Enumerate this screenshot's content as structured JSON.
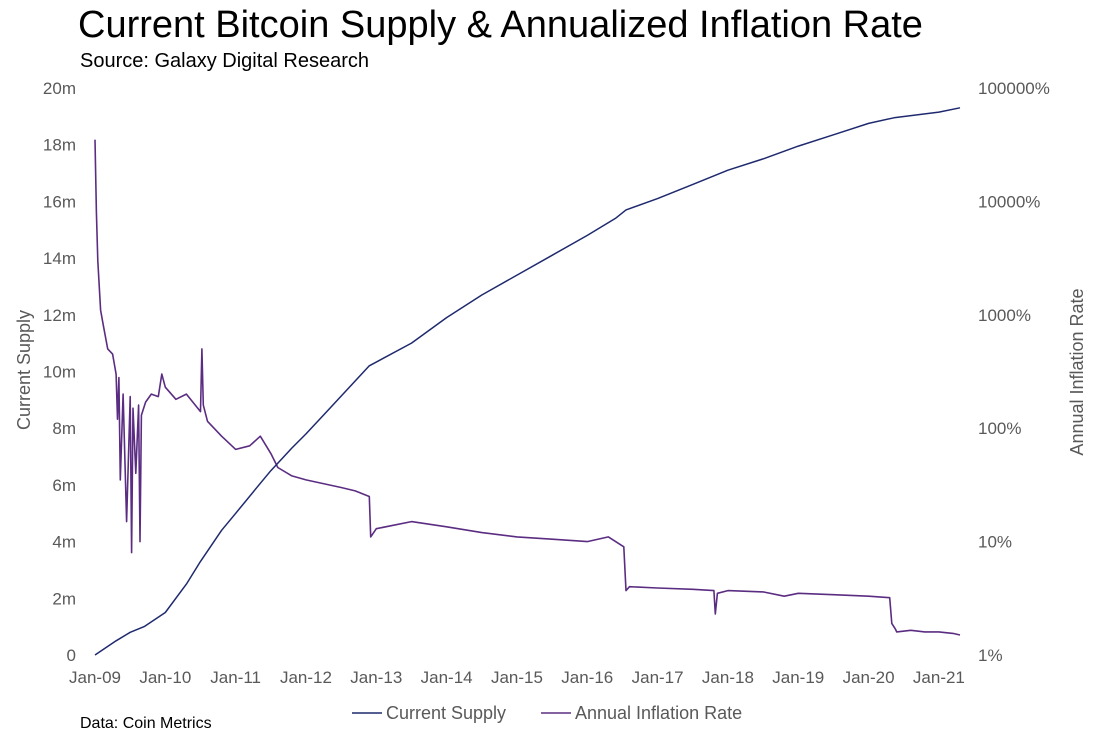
{
  "header": {
    "title": "Current Bitcoin Supply & Annualized Inflation Rate",
    "subtitle": "Source: Galaxy Digital Research"
  },
  "footer": {
    "note": "Data: Coin Metrics"
  },
  "chart_data": {
    "type": "line",
    "title": "Current Bitcoin Supply & Annualized Inflation Rate",
    "subtitle": "Source: Galaxy Digital Research",
    "xlabel": "",
    "ylabel": "Current Supply",
    "y2label": "Annual Inflation Rate",
    "x_range": [
      2009.0,
      2021.3
    ],
    "x_ticks": [
      {
        "label": "Jan-09",
        "x": 2009
      },
      {
        "label": "Jan-10",
        "x": 2010
      },
      {
        "label": "Jan-11",
        "x": 2011
      },
      {
        "label": "Jan-12",
        "x": 2012
      },
      {
        "label": "Jan-13",
        "x": 2013
      },
      {
        "label": "Jan-14",
        "x": 2014
      },
      {
        "label": "Jan-15",
        "x": 2015
      },
      {
        "label": "Jan-16",
        "x": 2016
      },
      {
        "label": "Jan-17",
        "x": 2017
      },
      {
        "label": "Jan-18",
        "x": 2018
      },
      {
        "label": "Jan-19",
        "x": 2019
      },
      {
        "label": "Jan-20",
        "x": 2020
      },
      {
        "label": "Jan-21",
        "x": 2021
      }
    ],
    "ylim": [
      0,
      20
    ],
    "y_ticks": [
      {
        "label": "0",
        "value": 0
      },
      {
        "label": "2m",
        "value": 2
      },
      {
        "label": "4m",
        "value": 4
      },
      {
        "label": "6m",
        "value": 6
      },
      {
        "label": "8m",
        "value": 8
      },
      {
        "label": "10m",
        "value": 10
      },
      {
        "label": "12m",
        "value": 12
      },
      {
        "label": "14m",
        "value": 14
      },
      {
        "label": "16m",
        "value": 16
      },
      {
        "label": "18m",
        "value": 18
      },
      {
        "label": "20m",
        "value": 20
      }
    ],
    "y2_scale": "log",
    "y2lim": [
      1,
      100000
    ],
    "y2_ticks": [
      {
        "label": "1%",
        "value": 1
      },
      {
        "label": "10%",
        "value": 10
      },
      {
        "label": "100%",
        "value": 100
      },
      {
        "label": "1000%",
        "value": 1000
      },
      {
        "label": "10000%",
        "value": 10000
      },
      {
        "label": "100000%",
        "value": 100000
      }
    ],
    "legend_position": "bottom-center",
    "grid": false,
    "series": [
      {
        "name": "Current Supply",
        "axis": "left",
        "color": "#1f2a6e",
        "units": "million BTC",
        "x": [
          2009.0,
          2009.3,
          2009.5,
          2009.7,
          2010.0,
          2010.3,
          2010.5,
          2010.8,
          2011.0,
          2011.3,
          2011.5,
          2011.8,
          2012.0,
          2012.3,
          2012.6,
          2012.9,
          2013.5,
          2014.0,
          2014.5,
          2015.0,
          2015.5,
          2016.0,
          2016.4,
          2016.55,
          2017.0,
          2017.5,
          2018.0,
          2018.5,
          2019.0,
          2019.5,
          2020.0,
          2020.36,
          2021.0,
          2021.3
        ],
        "values": [
          0.0,
          0.5,
          0.8,
          1.0,
          1.5,
          2.5,
          3.3,
          4.4,
          5.0,
          5.9,
          6.5,
          7.3,
          7.8,
          8.6,
          9.4,
          10.2,
          11.0,
          11.9,
          12.7,
          13.4,
          14.1,
          14.8,
          15.4,
          15.7,
          16.1,
          16.6,
          17.1,
          17.5,
          17.95,
          18.35,
          18.75,
          18.95,
          19.15,
          19.3
        ]
      },
      {
        "name": "Annual Inflation Rate",
        "axis": "right",
        "color": "#5b2d82",
        "units": "percent",
        "x": [
          2009.0,
          2009.02,
          2009.04,
          2009.08,
          2009.12,
          2009.18,
          2009.25,
          2009.3,
          2009.32,
          2009.34,
          2009.36,
          2009.4,
          2009.45,
          2009.5,
          2009.52,
          2009.54,
          2009.58,
          2009.62,
          2009.64,
          2009.66,
          2009.72,
          2009.8,
          2009.9,
          2009.95,
          2010.0,
          2010.15,
          2010.3,
          2010.5,
          2010.52,
          2010.54,
          2010.6,
          2010.8,
          2011.0,
          2011.2,
          2011.35,
          2011.5,
          2011.6,
          2011.8,
          2012.0,
          2012.5,
          2012.7,
          2012.9,
          2012.92,
          2013.0,
          2013.5,
          2014.0,
          2014.5,
          2015.0,
          2015.5,
          2016.0,
          2016.3,
          2016.52,
          2016.55,
          2016.6,
          2017.0,
          2017.5,
          2017.8,
          2017.82,
          2017.85,
          2018.0,
          2018.5,
          2018.8,
          2019.0,
          2019.5,
          2020.0,
          2020.3,
          2020.33,
          2020.38,
          2020.4,
          2020.6,
          2020.8,
          2021.0,
          2021.2,
          2021.3
        ],
        "values": [
          35000,
          8000,
          3000,
          1100,
          800,
          500,
          450,
          300,
          120,
          280,
          35,
          200,
          15,
          190,
          8,
          150,
          40,
          160,
          10,
          130,
          170,
          200,
          190,
          300,
          230,
          180,
          200,
          140,
          500,
          160,
          115,
          85,
          65,
          70,
          85,
          60,
          45,
          38,
          35,
          30,
          28,
          25,
          11,
          13,
          15,
          13.5,
          12,
          11,
          10.5,
          10,
          11,
          9,
          3.7,
          4.0,
          3.9,
          3.8,
          3.7,
          2.3,
          3.5,
          3.7,
          3.6,
          3.3,
          3.5,
          3.4,
          3.3,
          3.2,
          1.9,
          1.7,
          1.6,
          1.65,
          1.6,
          1.6,
          1.55,
          1.5
        ]
      }
    ]
  }
}
